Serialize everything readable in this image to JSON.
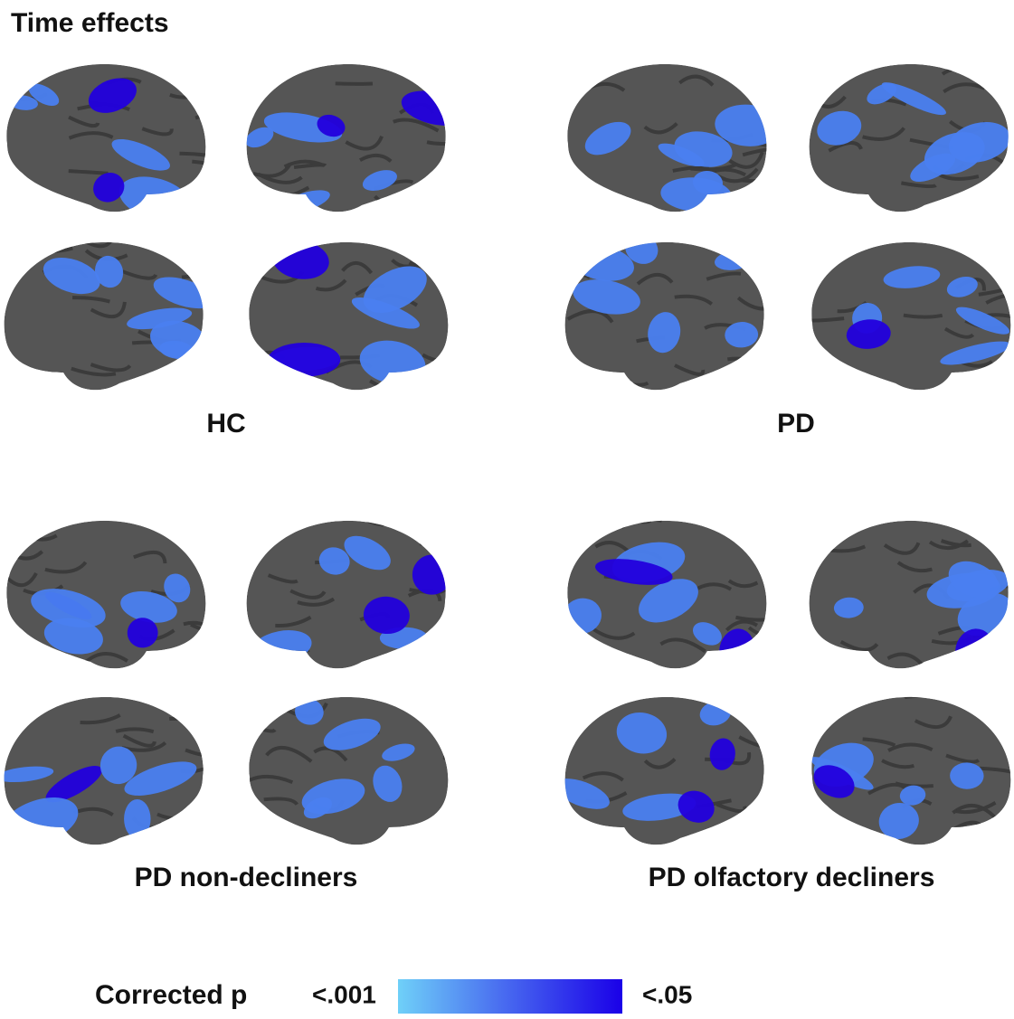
{
  "header": {
    "title": "Time effects"
  },
  "panels": [
    {
      "label": "HC"
    },
    {
      "label": "PD"
    },
    {
      "label": "PD non-decliners"
    },
    {
      "label": "PD olfactory decliners"
    }
  ],
  "colorbar": {
    "title": "Corrected p",
    "low_label": "<.001",
    "high_label": "<.05"
  }
}
